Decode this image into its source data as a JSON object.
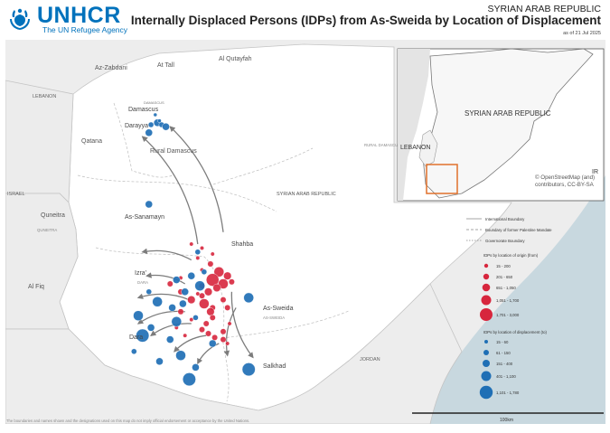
{
  "header": {
    "org_name": "UNHCR",
    "org_tagline": "The UN Refugee Agency",
    "country": "SYRIAN ARAB REPUBLIC",
    "title": "Internally Displaced Persons (IDPs) from As-Sweida by Location of Displacement",
    "date": "as of 21 Jul 2025"
  },
  "map": {
    "colors": {
      "sea": "#c8d8df",
      "land_other": "#ededed",
      "land_main": "#ffffff",
      "border": "#c4c4c4",
      "origin": "#d7263d",
      "displacement": "#1f6fb5",
      "arrow": "#7c7c7c"
    },
    "labels": [
      {
        "name": "az-zabdani",
        "text": "Az-Zabdani"
      },
      {
        "name": "at-tall",
        "text": "At Tall"
      },
      {
        "name": "al-qutayfah",
        "text": "Al Qutayfah"
      },
      {
        "name": "lebanon",
        "text": "LEBANON"
      },
      {
        "name": "damascus",
        "text": "Damascus"
      },
      {
        "name": "damascus-sub",
        "text": "DAMASCUS"
      },
      {
        "name": "darayya",
        "text": "Darayya"
      },
      {
        "name": "qatana",
        "text": "Qatana"
      },
      {
        "name": "rural-damascus",
        "text": "Rural Damascus"
      },
      {
        "name": "rural-damascus-gov",
        "text": "RURAL DAMASCUS"
      },
      {
        "name": "israel",
        "text": "ISRAEL"
      },
      {
        "name": "quneitra",
        "text": "Quneitra"
      },
      {
        "name": "quneitra-sub",
        "text": "QUNEITRA"
      },
      {
        "name": "as-sanamayn",
        "text": "As-Sanamayn"
      },
      {
        "name": "syria",
        "text": "SYRIAN ARAB REPUBLIC"
      },
      {
        "name": "shahba",
        "text": "Shahba"
      },
      {
        "name": "izra",
        "text": "Izra'"
      },
      {
        "name": "daraa-gov",
        "text": "DARA"
      },
      {
        "name": "al-fiq",
        "text": "Al Fiq"
      },
      {
        "name": "as-sweida",
        "text": "As-Sweida"
      },
      {
        "name": "as-sweida-sub",
        "text": "AS-SWEIDA"
      },
      {
        "name": "daraa",
        "text": "Dara"
      },
      {
        "name": "salkhad",
        "text": "Salkhad"
      },
      {
        "name": "jordan",
        "text": "JORDAN"
      }
    ],
    "origin_points": [
      [
        32.76,
        36.58,
        4
      ],
      [
        32.74,
        36.62,
        3
      ],
      [
        32.72,
        36.55,
        5
      ],
      [
        32.7,
        36.6,
        4
      ],
      [
        32.68,
        36.57,
        3
      ],
      [
        32.71,
        36.64,
        2
      ],
      [
        32.66,
        36.53,
        3
      ],
      [
        32.64,
        36.5,
        2
      ],
      [
        32.6,
        36.51,
        4
      ],
      [
        32.58,
        36.55,
        2
      ],
      [
        32.56,
        36.54,
        3
      ],
      [
        32.53,
        36.55,
        2
      ],
      [
        32.5,
        36.52,
        2
      ],
      [
        32.47,
        36.5,
        2
      ],
      [
        32.45,
        36.53,
        2
      ],
      [
        32.43,
        36.56,
        2
      ],
      [
        32.42,
        36.6,
        2
      ],
      [
        32.4,
        36.62,
        1
      ],
      [
        32.46,
        36.6,
        2
      ],
      [
        32.5,
        36.63,
        1
      ],
      [
        32.62,
        36.45,
        3
      ],
      [
        32.66,
        36.4,
        2
      ],
      [
        32.7,
        36.35,
        2
      ],
      [
        32.73,
        36.4,
        1
      ],
      [
        32.77,
        36.5,
        1
      ],
      [
        32.8,
        36.54,
        2
      ],
      [
        32.83,
        36.48,
        1
      ],
      [
        32.85,
        36.55,
        1
      ],
      [
        32.88,
        36.5,
        1
      ],
      [
        32.9,
        36.45,
        1
      ],
      [
        32.56,
        36.4,
        2
      ],
      [
        32.52,
        36.45,
        1
      ],
      [
        32.48,
        36.38,
        1
      ],
      [
        32.44,
        36.42,
        1
      ],
      [
        32.58,
        36.62,
        2
      ],
      [
        32.62,
        36.6,
        2
      ],
      [
        32.65,
        36.48,
        1
      ],
      [
        32.69,
        36.5,
        2
      ]
    ],
    "displacement_points": [
      [
        33.51,
        36.29,
        3
      ],
      [
        33.5,
        36.31,
        2
      ],
      [
        33.49,
        36.33,
        3
      ],
      [
        33.5,
        36.26,
        2
      ],
      [
        33.52,
        36.3,
        1
      ],
      [
        33.46,
        36.25,
        3
      ],
      [
        33.55,
        36.28,
        1
      ],
      [
        33.1,
        36.25,
        3
      ],
      [
        32.86,
        36.48,
        2
      ],
      [
        32.74,
        36.45,
        3
      ],
      [
        32.72,
        36.38,
        3
      ],
      [
        32.69,
        36.49,
        4
      ],
      [
        32.66,
        36.42,
        3
      ],
      [
        32.61,
        36.29,
        4
      ],
      [
        32.6,
        36.41,
        3
      ],
      [
        32.58,
        36.36,
        3
      ],
      [
        32.54,
        36.2,
        4
      ],
      [
        32.51,
        36.38,
        4
      ],
      [
        32.44,
        36.22,
        5
      ],
      [
        32.42,
        36.35,
        3
      ],
      [
        32.34,
        36.4,
        4
      ],
      [
        32.31,
        36.3,
        3
      ],
      [
        32.28,
        36.47,
        3
      ],
      [
        32.22,
        36.44,
        5
      ],
      [
        32.63,
        36.72,
        4
      ],
      [
        32.27,
        36.72,
        5
      ],
      [
        32.4,
        36.55,
        3
      ],
      [
        32.53,
        36.47,
        2
      ],
      [
        32.76,
        36.51,
        2
      ],
      [
        32.48,
        36.26,
        3
      ],
      [
        32.36,
        36.18,
        2
      ],
      [
        32.66,
        36.25,
        2
      ]
    ],
    "flow_arrows": [
      {
        "from": [
          32.96,
          36.6
        ],
        "to": [
          33.49,
          36.35
        ]
      },
      {
        "from": [
          32.9,
          36.48
        ],
        "to": [
          33.44,
          36.22
        ]
      },
      {
        "from": [
          32.82,
          36.45
        ],
        "to": [
          32.86,
          36.22
        ]
      },
      {
        "from": [
          32.7,
          36.42
        ],
        "to": [
          32.74,
          36.24
        ]
      },
      {
        "from": [
          32.62,
          36.44
        ],
        "to": [
          32.63,
          36.2
        ]
      },
      {
        "from": [
          32.56,
          36.42
        ],
        "to": [
          32.5,
          36.2
        ]
      },
      {
        "from": [
          32.5,
          36.45
        ],
        "to": [
          32.44,
          36.26
        ]
      },
      {
        "from": [
          32.44,
          36.52
        ],
        "to": [
          32.36,
          36.37
        ]
      },
      {
        "from": [
          32.4,
          36.58
        ],
        "to": [
          32.3,
          36.48
        ]
      },
      {
        "from": [
          32.58,
          36.66
        ],
        "to": [
          32.34,
          36.62
        ]
      },
      {
        "from": [
          32.66,
          36.64
        ],
        "to": [
          32.33,
          36.74
        ]
      }
    ]
  },
  "inset": {
    "country_label": "SYRIAN ARAB REPUBLIC",
    "lebanon_label": "LEBANON",
    "iraq_label": "IR",
    "credit": "© OpenStreetMap (and) contributors, CC-BY-SA",
    "highlight_color": "#e0712b"
  },
  "legend": {
    "lines": [
      {
        "name": "international-boundary",
        "text": "International Boundary"
      },
      {
        "name": "palestine-mandate-boundary",
        "text": "Boundary of former Palestine Mandate"
      },
      {
        "name": "governorate-boundary",
        "text": "Governorate Boundary"
      }
    ],
    "origin_title": "IDPs by location of origin (from)",
    "origin_classes": [
      "15 - 200",
      "201 - 650",
      "651 - 1,050",
      "1,051 - 1,700",
      "1,701 - 3,000"
    ],
    "displacement_title": "IDPs by location of displacement (to)",
    "displacement_classes": [
      "15 - 60",
      "61 - 150",
      "151 - 400",
      "401 - 1,100",
      "1,101 - 1,780"
    ]
  },
  "scale": {
    "label": "100km"
  },
  "disclaimer": "The boundaries and names shown and the designations used on this map do not imply official endorsement or acceptance by the United Nations."
}
